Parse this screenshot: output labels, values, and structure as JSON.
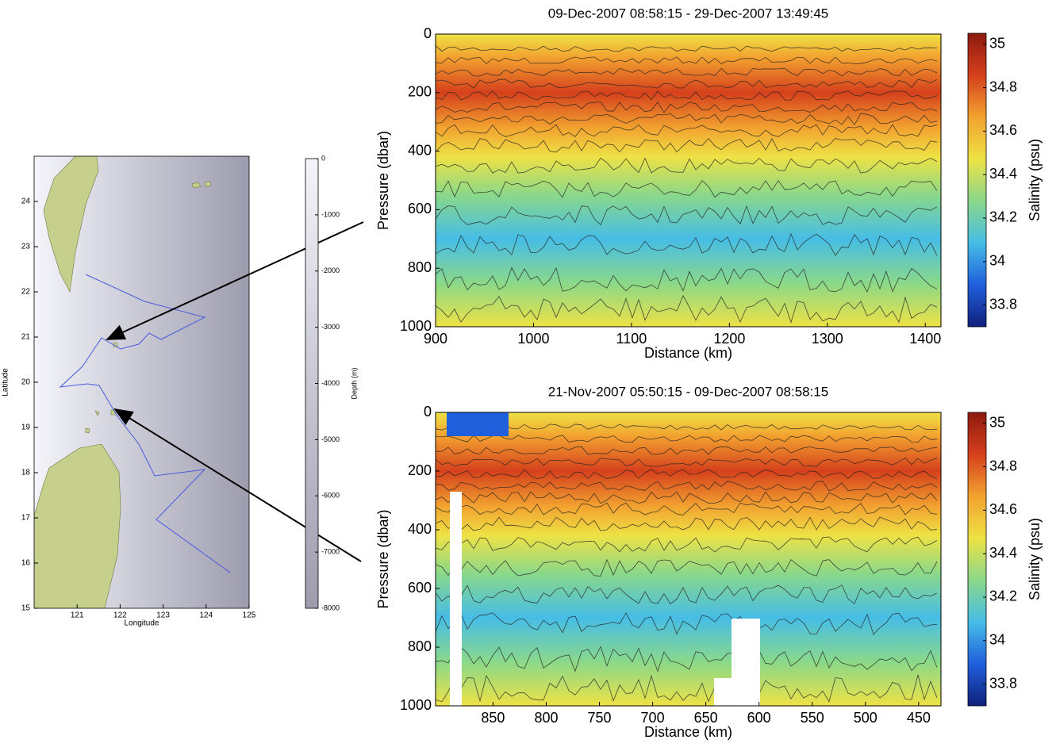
{
  "chart_data": [
    {
      "type": "map",
      "xlabel": "Longitude",
      "ylabel": "Latitude",
      "xlim": [
        120,
        125
      ],
      "xticks": [
        121,
        122,
        123,
        124,
        125
      ],
      "ylim": [
        15,
        25
      ],
      "yticks": [
        15,
        16,
        17,
        18,
        19,
        20,
        21,
        22,
        23,
        24
      ],
      "colorbar": {
        "label": "Depth (m)",
        "lim": [
          -8000,
          0
        ],
        "ticks": [
          0,
          -1000,
          -2000,
          -3000,
          -4000,
          -5000,
          -6000,
          -7000,
          -8000
        ],
        "colors": [
          "#9c9cae",
          "#f4f4fa"
        ]
      }
    },
    {
      "type": "contour",
      "title": "09-Dec-2007 08:58:15 - 29-Dec-2007 13:49:45",
      "xlabel": "Distance (km)",
      "ylabel": "Pressure (dbar)",
      "xlim": [
        900,
        1416
      ],
      "xticks": [
        900,
        1000,
        1100,
        1200,
        1300,
        1400
      ],
      "ylim": [
        1000,
        0
      ],
      "yticks": [
        0,
        200,
        400,
        600,
        800,
        1000
      ],
      "colorbar": {
        "label": "Salinity (psu)",
        "lim": [
          33.7,
          35.05
        ],
        "ticks": [
          33.8,
          34,
          34.2,
          34.4,
          34.6,
          34.8,
          35
        ],
        "colors": [
          "#10207c",
          "#1f5fdc",
          "#46bde6",
          "#8ad88a",
          "#eee245",
          "#f2a230",
          "#d5401c",
          "#8e1a10"
        ]
      }
    },
    {
      "type": "contour",
      "title": "21-Nov-2007 05:50:15 - 09-Dec-2007 08:58:15",
      "xlabel": "Distance (km)",
      "ylabel": "Pressure (dbar)",
      "xlim": [
        904,
        429
      ],
      "xticks": [
        850,
        800,
        750,
        700,
        650,
        600,
        550,
        500,
        450
      ],
      "ylim": [
        1000,
        0
      ],
      "yticks": [
        0,
        200,
        400,
        600,
        800,
        1000
      ],
      "colorbar": {
        "label": "Salinity (psu)",
        "lim": [
          33.7,
          35.05
        ],
        "ticks": [
          33.8,
          34,
          34.2,
          34.4,
          34.6,
          34.8,
          35
        ],
        "colors": [
          "#10207c",
          "#1f5fdc",
          "#46bde6",
          "#8ad88a",
          "#eee245",
          "#f2a230",
          "#d5401c",
          "#8e1a10"
        ]
      }
    }
  ]
}
